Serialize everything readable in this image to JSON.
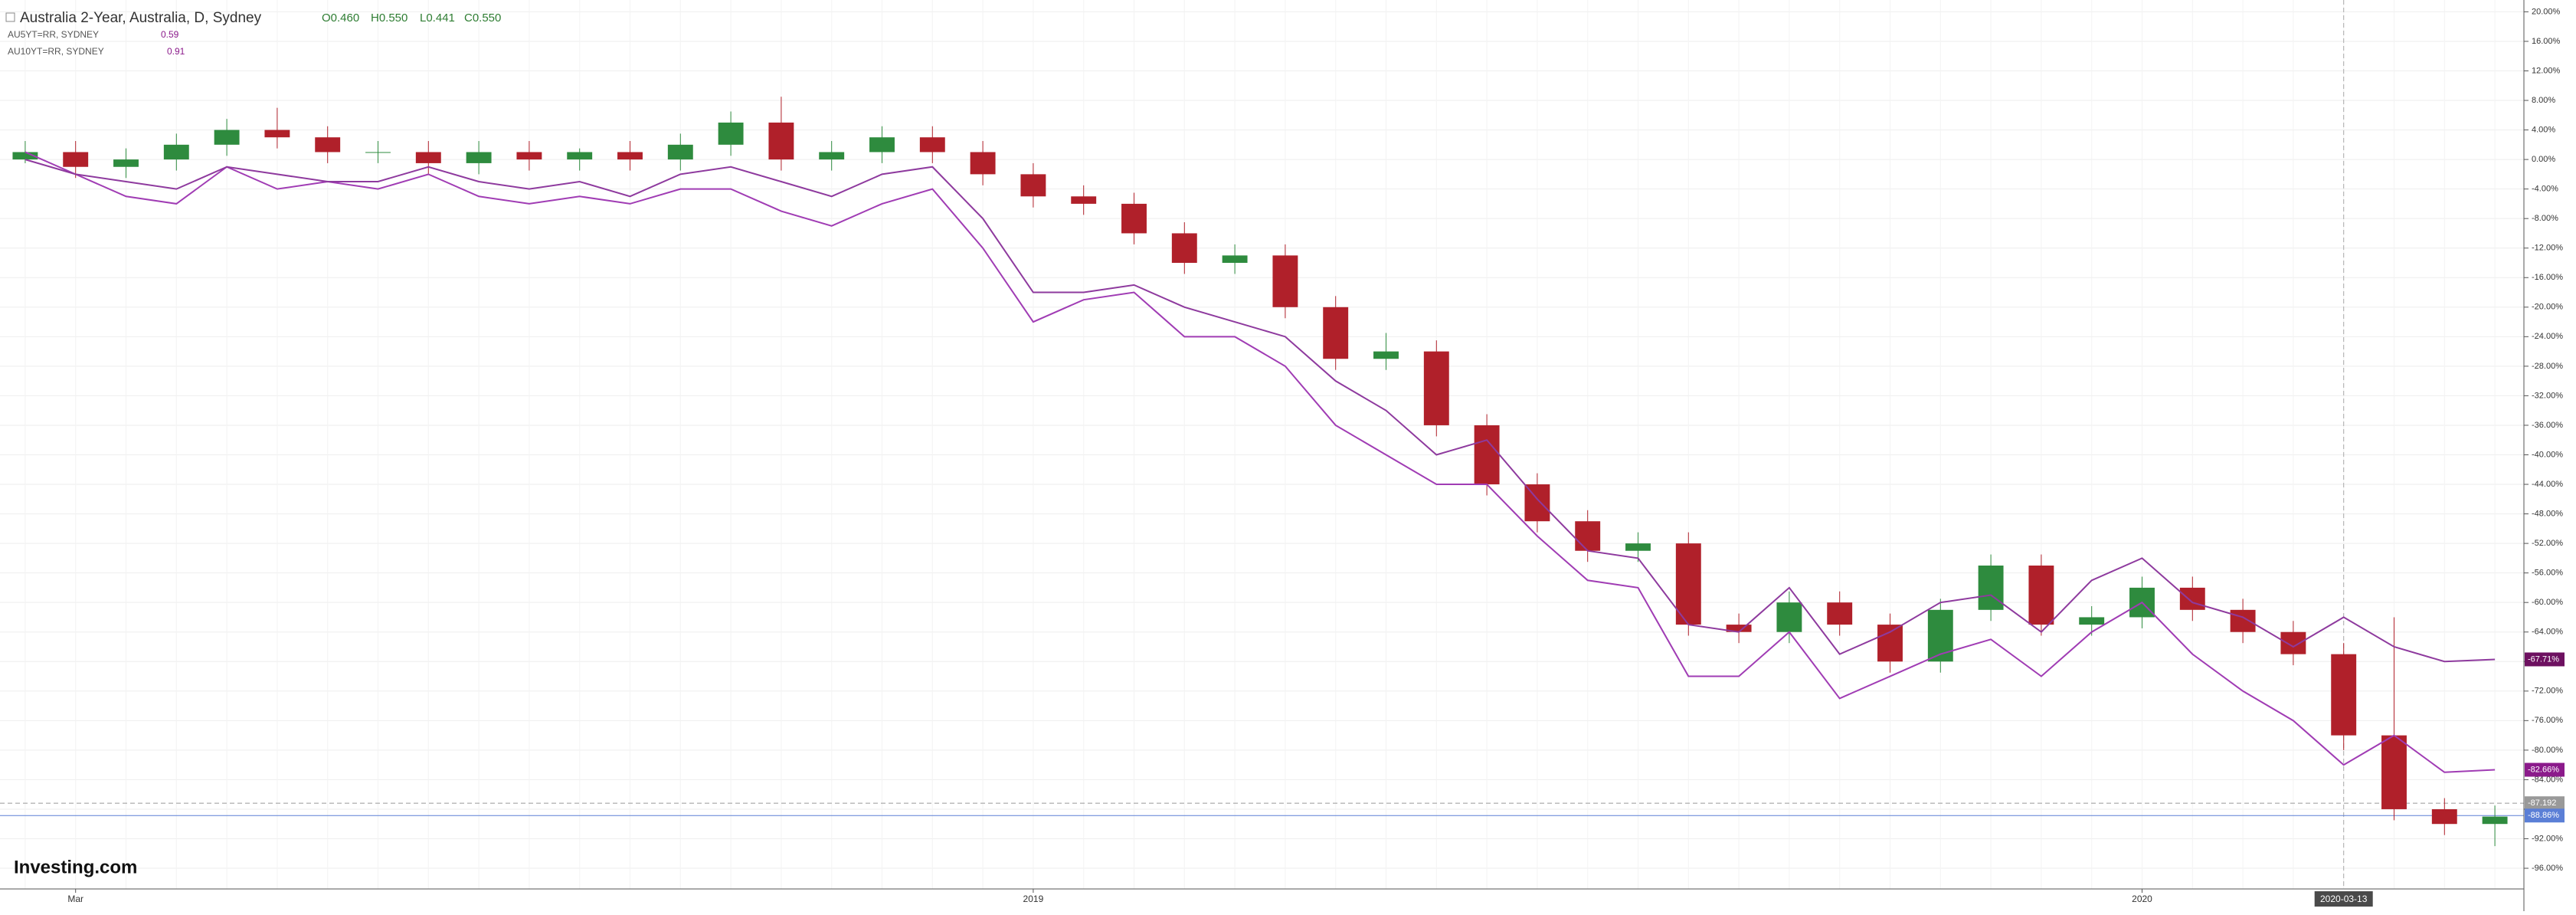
{
  "chart_data": {
    "type": "candlestick",
    "title": "Australia 2-Year, Australia, D, Sydney",
    "ohlc_labels": [
      "O0.460",
      "H0.550",
      "L0.441",
      "C0.550"
    ],
    "categories": [
      null,
      "Mar",
      null,
      null,
      null,
      null,
      null,
      null,
      null,
      null,
      null,
      null,
      null,
      null,
      null,
      null,
      null,
      null,
      null,
      null,
      "2019",
      null,
      null,
      null,
      null,
      null,
      null,
      null,
      null,
      null,
      null,
      null,
      null,
      null,
      null,
      null,
      null,
      null,
      null,
      null,
      null,
      null,
      "2020",
      null,
      null,
      null,
      "2020-03-13",
      null,
      null,
      null
    ],
    "candles": {
      "name": "Australia 2-Year",
      "up_color": "#2e8b3e",
      "down_color": "#b0202a",
      "open": [
        0,
        1,
        -1,
        0,
        2,
        4,
        3,
        1,
        1,
        -0.5,
        1,
        0,
        1,
        0,
        2,
        5,
        0,
        1,
        3,
        1,
        -2,
        -5,
        -6,
        -10,
        -14,
        -13,
        -20,
        -27,
        -26,
        -36,
        -44,
        -49,
        -53,
        -52,
        -63,
        -64,
        -60,
        -63,
        -68,
        -61,
        -55,
        -63,
        -62,
        -58,
        -61,
        -64,
        -67,
        -78,
        -88,
        -90
      ],
      "high": [
        2.5,
        2.5,
        1.5,
        3.5,
        5.5,
        7,
        4.5,
        2.5,
        2.5,
        2.5,
        2.5,
        1.5,
        2.5,
        3.5,
        6.5,
        8.5,
        2.5,
        4.5,
        4.5,
        2.5,
        -0.5,
        -3.5,
        -4.5,
        -8.5,
        -11.5,
        -11.5,
        -18.5,
        -23.5,
        -24.5,
        -34.5,
        -42.5,
        -47.5,
        -50.5,
        -50.5,
        -61.5,
        -58.5,
        -58.5,
        -61.5,
        -59.5,
        -53.5,
        -53.5,
        -60.5,
        -56.5,
        -56.5,
        -59.5,
        -62.5,
        -65.5,
        -62,
        -86.5,
        -87.5
      ],
      "low": [
        -0.5,
        -2.5,
        -2.5,
        -1.5,
        0.5,
        1.5,
        -0.5,
        -0.5,
        -2,
        -2,
        -1.5,
        -1.5,
        -1.5,
        -1.5,
        0.5,
        -1.5,
        -1.5,
        -0.5,
        -0.5,
        -3.5,
        -6.5,
        -7.5,
        -11.5,
        -15.5,
        -15.5,
        -21.5,
        -28.5,
        -28.5,
        -37.5,
        -45.5,
        -50.5,
        -54.5,
        -54.5,
        -64.5,
        -65.5,
        -65.5,
        -64.5,
        -69.5,
        -69.5,
        -62.5,
        -64.5,
        -64.5,
        -63.5,
        -62.5,
        -65.5,
        -68.5,
        -80,
        -89.5,
        -91.5,
        -93
      ],
      "close": [
        1,
        -1,
        0,
        2,
        4,
        3,
        1,
        1,
        -0.5,
        1,
        0,
        1,
        0,
        2,
        5,
        0,
        1,
        3,
        1,
        -2,
        -5,
        -6,
        -10,
        -14,
        -13,
        -20,
        -27,
        -26,
        -36,
        -44,
        -49,
        -53,
        -52,
        -63,
        -64,
        -60,
        -63,
        -68,
        -61,
        -55,
        -63,
        -62,
        -58,
        -61,
        -64,
        -67,
        -78,
        -88,
        -90,
        -89
      ]
    },
    "series": [
      {
        "name": "AU5YT=RR, SYDNEY",
        "legend_value": "0.59",
        "color": "#a03cb4",
        "label_color": "#8b1a8b",
        "values": [
          1,
          -2,
          -5,
          -6,
          -1,
          -4,
          -3,
          -4,
          -2,
          -5,
          -6,
          -5,
          -6,
          -4,
          -4,
          -7,
          -9,
          -6,
          -4,
          -12,
          -22,
          -19,
          -18,
          -24,
          -24,
          -28,
          -36,
          -40,
          -44,
          -44,
          -51,
          -57,
          -58,
          -70,
          -70,
          -64,
          -73,
          -70,
          -67,
          -65,
          -70,
          -64,
          -60,
          -67,
          -72,
          -76,
          -82,
          -78,
          -83,
          -82.66
        ],
        "last_label": "-82.66%"
      },
      {
        "name": "AU10YT=RR, SYDNEY",
        "legend_value": "0.91",
        "color": "#8e3a9e",
        "label_color": "#6d1060",
        "values": [
          0,
          -2,
          -3,
          -4,
          -1,
          -2,
          -3,
          -3,
          -1,
          -3,
          -4,
          -3,
          -5,
          -2,
          -1,
          -3,
          -5,
          -2,
          -1,
          -8,
          -18,
          -18,
          -17,
          -20,
          -22,
          -24,
          -30,
          -34,
          -40,
          -38,
          -46,
          -53,
          -54,
          -63,
          -64,
          -58,
          -67,
          -64,
          -60,
          -59,
          -64,
          -57,
          -54,
          -60,
          -62,
          -66,
          -62,
          -66,
          -68,
          -67.71
        ],
        "last_label": "-67.71%"
      }
    ],
    "price_lines": [
      {
        "value": -87.192,
        "label": "-87.192",
        "color": "#999",
        "dashed": true
      },
      {
        "value": -88.86,
        "label": "-88.86%",
        "color": "#5b7fd6",
        "dashed": false
      }
    ],
    "crosshair_index": 46,
    "ylim": [
      -98.8,
      21.6
    ],
    "yticks": [
      {
        "value": -96,
        "label": "-96.00%"
      },
      {
        "value": -92,
        "label": "-92.00%"
      },
      {
        "value": -88,
        "label": "-88.00%"
      },
      {
        "value": -84,
        "label": "-84.00%"
      },
      {
        "value": -80,
        "label": "-80.00%"
      },
      {
        "value": -76,
        "label": "-76.00%"
      },
      {
        "value": -72,
        "label": "-72.00%"
      },
      {
        "value": -68,
        "label": "-68.00%"
      },
      {
        "value": -64,
        "label": "-64.00%"
      },
      {
        "value": -60,
        "label": "-60.00%"
      },
      {
        "value": -56,
        "label": "-56.00%"
      },
      {
        "value": -52,
        "label": "-52.00%"
      },
      {
        "value": -48,
        "label": "-48.00%"
      },
      {
        "value": -44,
        "label": "-44.00%"
      },
      {
        "value": -40,
        "label": "-40.00%"
      },
      {
        "value": -36,
        "label": "-36.00%"
      },
      {
        "value": -32,
        "label": "-32.00%"
      },
      {
        "value": -28,
        "label": "-28.00%"
      },
      {
        "value": -24,
        "label": "-24.00%"
      },
      {
        "value": -20,
        "label": "-20.00%"
      },
      {
        "value": -16,
        "label": "-16.00%"
      },
      {
        "value": -12,
        "label": "-12.00%"
      },
      {
        "value": -8,
        "label": "-8.00%"
      },
      {
        "value": -4,
        "label": "-4.00%"
      },
      {
        "value": 0,
        "label": "0.00%"
      },
      {
        "value": 4,
        "label": "4.00%"
      },
      {
        "value": 8,
        "label": "8.00%"
      },
      {
        "value": 12,
        "label": "12.00%"
      },
      {
        "value": 16,
        "label": "16.00%"
      },
      {
        "value": 20,
        "label": "20.00%"
      }
    ],
    "grid": true,
    "watermark": "Investing.com"
  }
}
